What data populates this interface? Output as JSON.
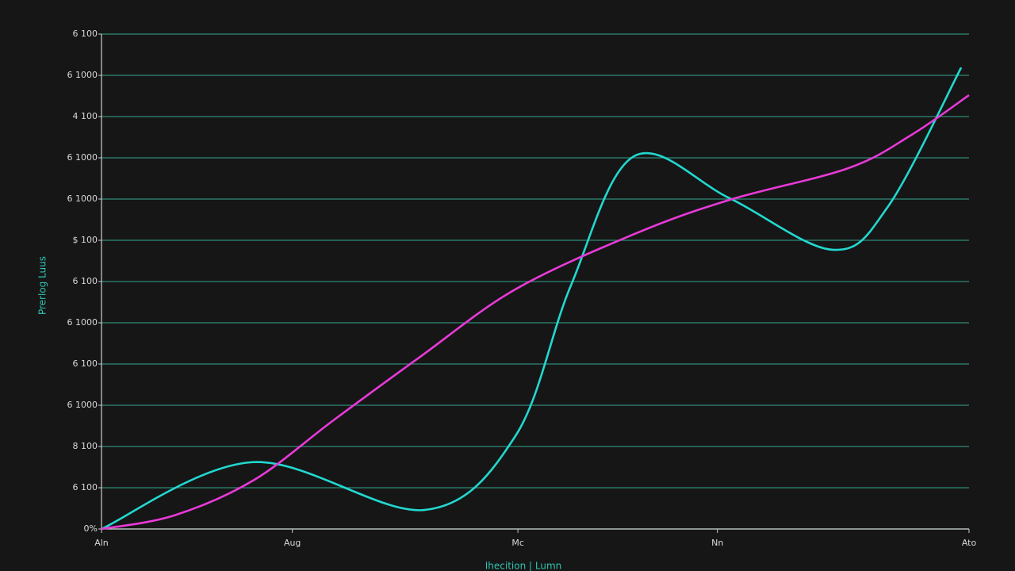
{
  "chart_data": {
    "type": "line",
    "x_label": "Ihecition | Lumn",
    "y_label": "Prerlog Luus",
    "xlim": [
      0,
      100
    ],
    "xticks": [
      {
        "value": 0,
        "label": "Aln"
      },
      {
        "value": 22,
        "label": "Aug"
      },
      {
        "value": 48,
        "label": "Mc"
      },
      {
        "value": 71,
        "label": "Nn"
      },
      {
        "value": 100,
        "label": "Ato"
      }
    ],
    "ylim": [
      0,
      12
    ],
    "yticks": [
      {
        "value": 0,
        "label": "0%"
      },
      {
        "value": 1,
        "label": "6 100"
      },
      {
        "value": 2,
        "label": "8 100"
      },
      {
        "value": 3,
        "label": "6 1000"
      },
      {
        "value": 4,
        "label": "6 100"
      },
      {
        "value": 5,
        "label": "6 1000"
      },
      {
        "value": 6,
        "label": "6 100"
      },
      {
        "value": 7,
        "label": "$ 100"
      },
      {
        "value": 8,
        "label": "6 1000"
      },
      {
        "value": 9,
        "label": "6 1000"
      },
      {
        "value": 10,
        "label": "4 100"
      },
      {
        "value": 11,
        "label": "6 1000"
      },
      {
        "value": 12,
        "label": "6 100"
      }
    ],
    "grid": true,
    "grid_color": "#2f8a78",
    "series": [
      {
        "color": "#22d8d0",
        "x": [
          0,
          17.4,
          37.2,
          47.7,
          54.1,
          61.4,
          72.4,
          84.3,
          90.7,
          99.1
        ],
        "values": [
          0,
          1.62,
          0.46,
          2.25,
          5.9,
          9.04,
          8.02,
          6.77,
          7.83,
          11.19
        ]
      },
      {
        "color": "#e83ad8",
        "x": [
          0,
          8.4,
          17.6,
          26.7,
          36.7,
          47.7,
          61.4,
          72.4,
          86.1,
          93.4,
          100
        ],
        "values": [
          0,
          0.33,
          1.19,
          2.63,
          4.17,
          5.81,
          7.15,
          7.98,
          8.75,
          9.56,
          10.52
        ]
      }
    ]
  }
}
